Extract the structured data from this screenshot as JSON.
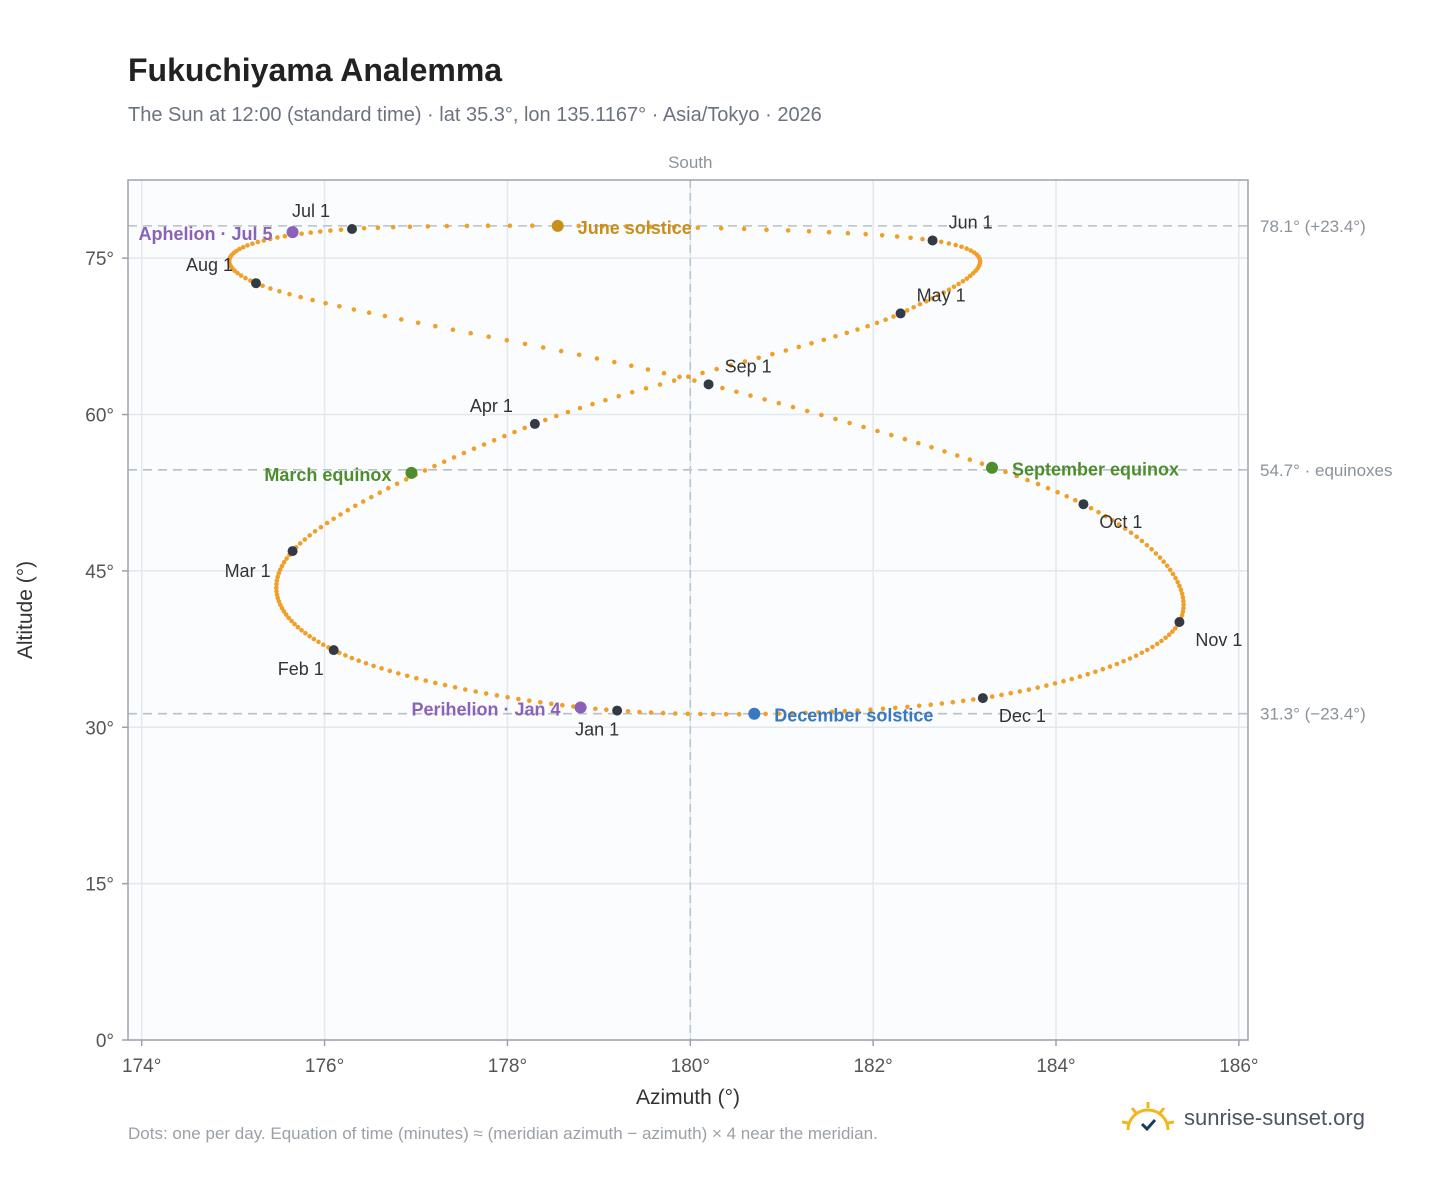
{
  "title": "Fukuchiyama Analemma",
  "subtitle": "The Sun at 12:00 (standard time) · lat 35.3°, lon 135.1167° · Asia/Tokyo · 2026",
  "footnote": "Dots: one per day. Equation of time (minutes) ≈ (meridian azimuth − azimuth) × 4 near the meridian.",
  "brand": {
    "name": "sunrise-sunset.org",
    "logo_icon": "sun-check-icon",
    "logo_color": "#f2b61f"
  },
  "colors": {
    "path": "#f0a028",
    "month": "#333a44",
    "solstice_june": "#c8901a",
    "solstice_dec": "#3a78c0",
    "equinox": "#4e8d2e",
    "apsis": "#8a62b8",
    "refline": "#b8c0c8",
    "grid": "#e3e8ee",
    "plot_bg": "#fafcfe",
    "frame": "#9aa3ad"
  },
  "chart_data": {
    "type": "scatter",
    "xlabel": "Azimuth (°)",
    "ylabel": "Altitude (°)",
    "xlim": [
      173.85,
      186.1
    ],
    "ylim": [
      0,
      82.5
    ],
    "x_ticks": [
      "174°",
      "176°",
      "178°",
      "180°",
      "182°",
      "184°",
      "186°"
    ],
    "x_tick_values": [
      174,
      176,
      178,
      180,
      182,
      184,
      186
    ],
    "y_ticks": [
      "0°",
      "15°",
      "30°",
      "45°",
      "60°",
      "75°"
    ],
    "y_tick_values": [
      0,
      15,
      30,
      45,
      60,
      75
    ],
    "grid": true,
    "meridian": {
      "x": 180,
      "label": "South"
    },
    "reference_lines": [
      {
        "y": 78.1,
        "label": "78.1° (+23.4°)"
      },
      {
        "y": 54.7,
        "label": "54.7° · equinoxes"
      },
      {
        "y": 31.3,
        "label": "31.3° (−23.4°)"
      }
    ],
    "month_markers": [
      {
        "label": "Jan 1",
        "x": 179.2,
        "y": 31.6
      },
      {
        "label": "Feb 1",
        "x": 176.1,
        "y": 37.4
      },
      {
        "label": "Mar 1",
        "x": 175.65,
        "y": 46.9
      },
      {
        "label": "Apr 1",
        "x": 178.3,
        "y": 59.1
      },
      {
        "label": "May 1",
        "x": 182.3,
        "y": 69.7
      },
      {
        "label": "Jun 1",
        "x": 182.65,
        "y": 76.7
      },
      {
        "label": "Jul 1",
        "x": 176.3,
        "y": 77.8
      },
      {
        "label": "Aug 1",
        "x": 175.25,
        "y": 72.6
      },
      {
        "label": "Sep 1",
        "x": 180.2,
        "y": 62.9
      },
      {
        "label": "Oct 1",
        "x": 184.3,
        "y": 51.4
      },
      {
        "label": "Nov 1",
        "x": 185.35,
        "y": 40.1
      },
      {
        "label": "Dec 1",
        "x": 183.2,
        "y": 32.8
      }
    ],
    "events": [
      {
        "label": "June solstice",
        "x": 178.55,
        "y": 78.1,
        "kind": "solstice_june"
      },
      {
        "label": "December solstice",
        "x": 180.7,
        "y": 31.3,
        "kind": "solstice_dec"
      },
      {
        "label": "March equinox",
        "x": 176.95,
        "y": 54.4,
        "kind": "equinox"
      },
      {
        "label": "September equinox",
        "x": 183.3,
        "y": 54.9,
        "kind": "equinox"
      },
      {
        "label": "Aphelion · Jul 5",
        "x": 175.65,
        "y": 77.5,
        "kind": "apsis"
      },
      {
        "label": "Perihelion · Jan 4",
        "x": 178.8,
        "y": 31.9,
        "kind": "apsis"
      }
    ],
    "path": [
      [
        179.2,
        31.6
      ],
      [
        176.1,
        37.4
      ],
      [
        175.65,
        46.9
      ],
      [
        178.3,
        59.1
      ],
      [
        182.3,
        69.7
      ],
      [
        182.65,
        76.7
      ],
      [
        176.3,
        77.8
      ],
      [
        175.25,
        72.6
      ],
      [
        180.2,
        62.9
      ],
      [
        184.3,
        51.4
      ],
      [
        185.35,
        40.1
      ],
      [
        183.2,
        32.8
      ]
    ]
  }
}
